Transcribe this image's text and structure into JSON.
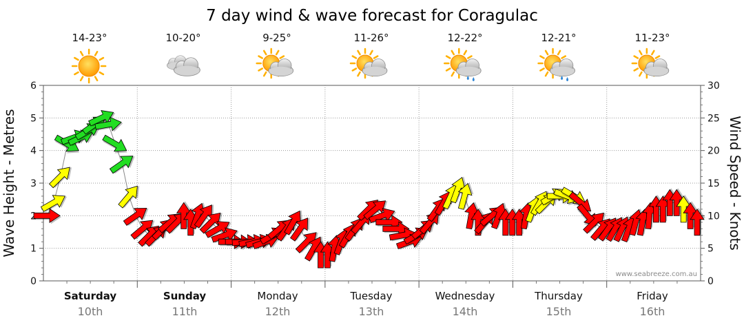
{
  "chart_data": {
    "type": "line",
    "title": "7 day wind & wave forecast for Coragulac",
    "y_left_label": "Wave Height - Metres",
    "y_right_label": "Wind Speed - Knots",
    "y_left_ticks": [
      "0",
      "1",
      "2",
      "3",
      "4",
      "5",
      "6"
    ],
    "y_right_ticks": [
      "0",
      "5",
      "10",
      "15",
      "20",
      "25",
      "30"
    ],
    "ylim_left": [
      0,
      6
    ],
    "ylim_right": [
      0,
      30
    ],
    "credit": "www.seabreeze.com.au",
    "days": [
      {
        "name": "Saturday",
        "date": "10th",
        "temp": "14-23°",
        "weather": "sunny",
        "bold": true
      },
      {
        "name": "Sunday",
        "date": "11th",
        "temp": "10-20°",
        "weather": "cloudy",
        "bold": true
      },
      {
        "name": "Monday",
        "date": "12th",
        "temp": "9-25°",
        "weather": "partly-cloudy",
        "bold": false
      },
      {
        "name": "Tuesday",
        "date": "13th",
        "temp": "11-26°",
        "weather": "partly-cloudy",
        "bold": false
      },
      {
        "name": "Wednesday",
        "date": "14th",
        "temp": "12-22°",
        "weather": "showers",
        "bold": false
      },
      {
        "name": "Thursday",
        "date": "15th",
        "temp": "12-21°",
        "weather": "showers",
        "bold": false
      },
      {
        "name": "Friday",
        "date": "16th",
        "temp": "11-23°",
        "weather": "partly-cloudy",
        "bold": false
      }
    ],
    "wind_series": {
      "name": "Wind Speed (knots)",
      "points_per_day": 8,
      "speed_knots": [
        10,
        12,
        16,
        21,
        22,
        22,
        23,
        24,
        25,
        24,
        21,
        18,
        13,
        10,
        8,
        7,
        7,
        8,
        9,
        9,
        10,
        9,
        10,
        10,
        9,
        8,
        7,
        6,
        6,
        6,
        6,
        6,
        6,
        7,
        8,
        8,
        9,
        8,
        6,
        5,
        4,
        4,
        5,
        6,
        7,
        8,
        9,
        11,
        11,
        10,
        9,
        8,
        7,
        6,
        7,
        8,
        9,
        11,
        12,
        13,
        14,
        13,
        10,
        9,
        9,
        10,
        10,
        9,
        9,
        9,
        10,
        11,
        12,
        12,
        13,
        13,
        13,
        13,
        12,
        10,
        9,
        8,
        8,
        8,
        8,
        8,
        9,
        9,
        10,
        11,
        11,
        12,
        12,
        11,
        10,
        9
      ],
      "direction_deg": [
        270,
        240,
        225,
        300,
        250,
        245,
        240,
        235,
        245,
        260,
        300,
        235,
        220,
        235,
        230,
        225,
        225,
        225,
        230,
        225,
        180,
        180,
        200,
        215,
        225,
        240,
        250,
        270,
        270,
        265,
        260,
        255,
        250,
        240,
        230,
        215,
        210,
        215,
        225,
        210,
        180,
        180,
        190,
        200,
        210,
        215,
        220,
        225,
        230,
        250,
        270,
        270,
        260,
        250,
        240,
        230,
        220,
        215,
        210,
        205,
        200,
        195,
        190,
        180,
        220,
        230,
        200,
        180,
        180,
        180,
        190,
        200,
        210,
        225,
        240,
        270,
        290,
        300,
        310,
        320,
        225,
        220,
        215,
        210,
        205,
        200,
        195,
        190,
        185,
        180,
        180,
        180,
        180,
        180,
        180,
        180
      ],
      "level": [
        "red",
        "yellow",
        "yellow",
        "green",
        "green",
        "green",
        "green",
        "green",
        "green",
        "green",
        "green",
        "green",
        "yellow",
        "red",
        "red",
        "red",
        "red",
        "red",
        "red",
        "red",
        "red",
        "red",
        "red",
        "red",
        "red",
        "red",
        "red",
        "red",
        "red",
        "red",
        "red",
        "red",
        "red",
        "red",
        "red",
        "red",
        "red",
        "red",
        "red",
        "red",
        "red",
        "red",
        "red",
        "red",
        "red",
        "red",
        "red",
        "red",
        "red",
        "red",
        "red",
        "red",
        "red",
        "red",
        "red",
        "red",
        "red",
        "red",
        "red",
        "yellow",
        "yellow",
        "yellow",
        "red",
        "red",
        "red",
        "red",
        "red",
        "red",
        "red",
        "red",
        "red",
        "yellow",
        "yellow",
        "yellow",
        "yellow",
        "yellow",
        "yellow",
        "yellow",
        "red",
        "red",
        "red",
        "red",
        "red",
        "red",
        "red",
        "red",
        "red",
        "red",
        "red",
        "red",
        "red",
        "red",
        "red",
        "yellow",
        "red",
        "red"
      ]
    }
  }
}
